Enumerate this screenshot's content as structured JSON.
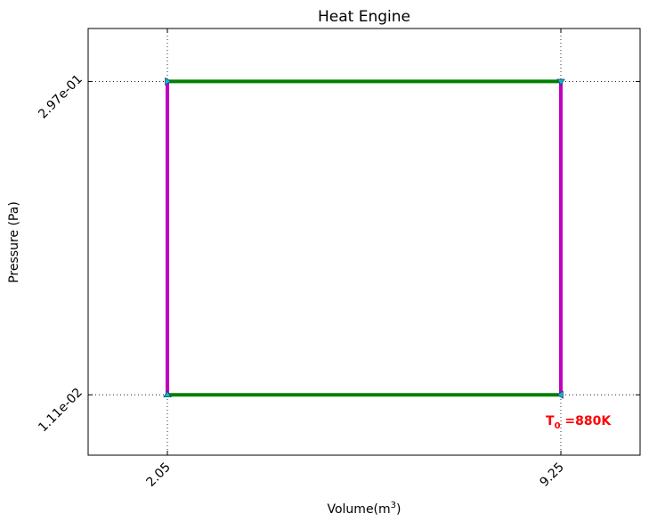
{
  "chart_data": {
    "type": "line",
    "title": "Heat Engine",
    "xlabel_prefix": "Volume(m",
    "xlabel_sup": "3",
    "xlabel_suffix": ")",
    "ylabel": "Pressure (Pa)",
    "x_ticks": [
      {
        "value": 2.05,
        "label": "2.05"
      },
      {
        "value": 9.25,
        "label": "9.25"
      }
    ],
    "y_ticks": [
      {
        "value": 0.0111,
        "label": "1.11e-02"
      },
      {
        "value": 0.297,
        "label": "2.97e-01"
      }
    ],
    "xlim": [
      0.6,
      10.7
    ],
    "ylim": [
      -0.044,
      0.3453
    ],
    "grid": "dotted, at tick positions",
    "segments": [
      {
        "from": [
          2.05,
          0.297
        ],
        "to": [
          9.25,
          0.297
        ],
        "color": "#007f00"
      },
      {
        "from": [
          9.25,
          0.297
        ],
        "to": [
          9.25,
          0.0111
        ],
        "color": "#bf00bf"
      },
      {
        "from": [
          9.25,
          0.0111
        ],
        "to": [
          2.05,
          0.0111
        ],
        "color": "#007f00"
      },
      {
        "from": [
          2.05,
          0.0111
        ],
        "to": [
          2.05,
          0.297
        ],
        "color": "#bf00bf"
      }
    ],
    "markers": [
      {
        "x": 2.05,
        "y": 0.297,
        "shape": "triangle-right"
      },
      {
        "x": 9.25,
        "y": 0.297,
        "shape": "triangle-down"
      },
      {
        "x": 9.25,
        "y": 0.0111,
        "shape": "triangle-left"
      },
      {
        "x": 2.05,
        "y": 0.0111,
        "shape": "triangle-up"
      }
    ],
    "marker_color": "#00bfbf",
    "annotation": {
      "prefix": "T",
      "sub": "0",
      "suffix": " =880K",
      "color": "#ff0000"
    }
  }
}
